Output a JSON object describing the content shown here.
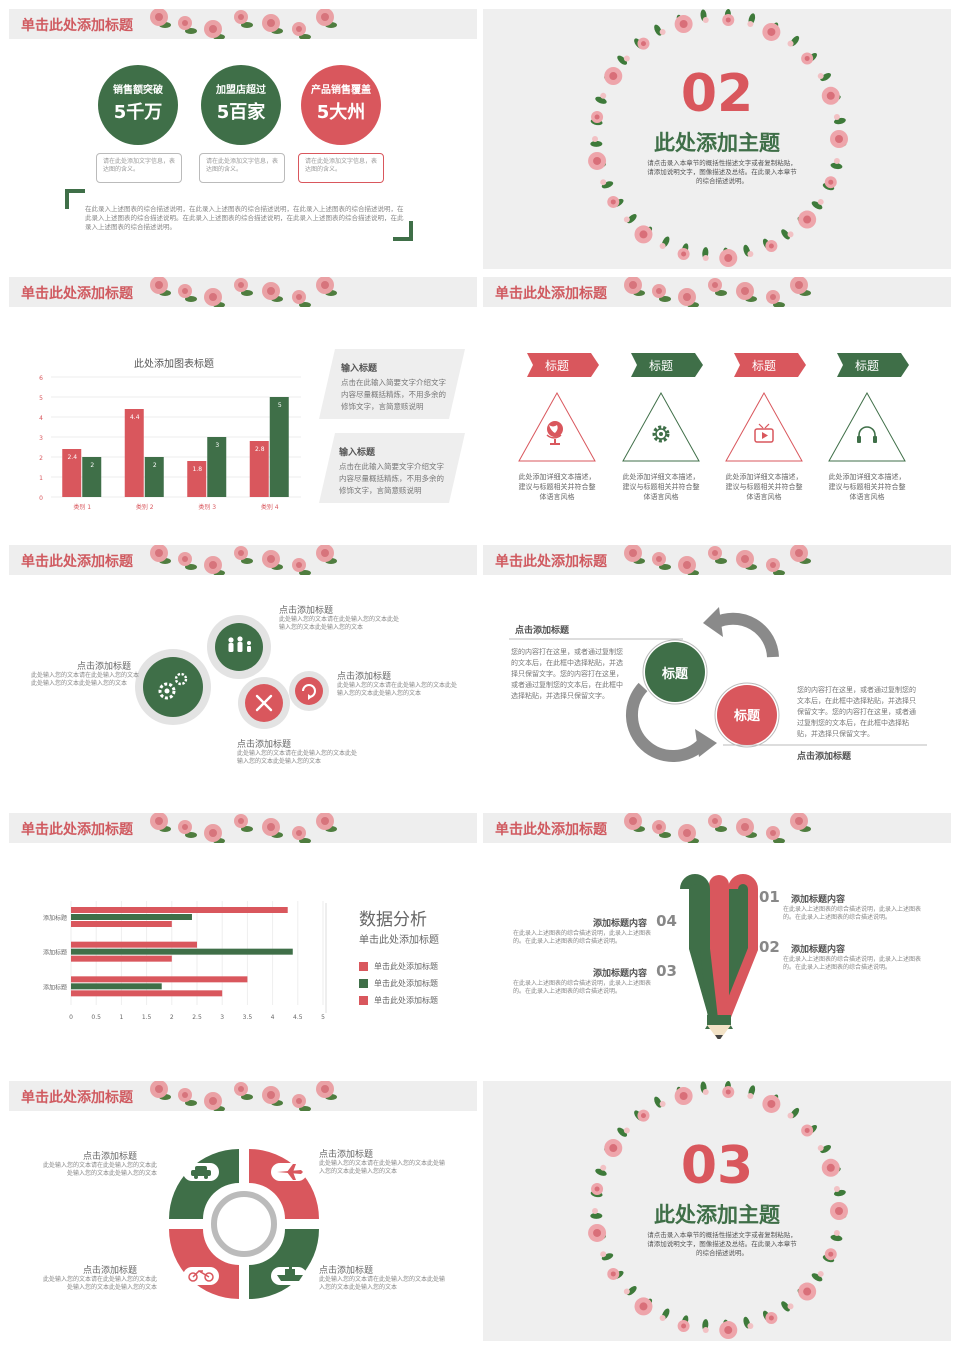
{
  "header_title": "单击此处添加标题",
  "slide1": {
    "stats": [
      {
        "label": "销售额突破",
        "value": "5千万",
        "desc": "请在此处添加文字信息，表达图的含义。"
      },
      {
        "label": "加盟店超过",
        "value": "5百家",
        "desc": "请在此处添加文字信息，表达图的含义。"
      },
      {
        "label": "产品销售覆盖",
        "value": "5大州",
        "desc": "请在此处添加文字信息，表达图的含义。"
      }
    ],
    "body": "在此录入上述图表的综合描述说明，在此录入上述图表的综合描述说明，在此录入上述图表的综合描述说明，在此录入上述图表的综合描述说明。在此录入上述图表的综合描述说明，在此录入上述图表的综合描述说明，在此录入上述图表的综合描述说明。"
  },
  "section2": {
    "number": "02",
    "title": "此处添加主题",
    "desc": "请点击录入本章节的概括性描述文字或者复制粘贴，请添加说明文字，图像描述及总结。在此录入本章节的综合描述说明。"
  },
  "slide3": {
    "chart_title": "此处添加图表标题",
    "info": [
      {
        "title": "输入标题",
        "text": "点击在此输入简要文字介绍文字内容尽量概括精炼，不用多余的修饰文字，言简意赅说明"
      },
      {
        "title": "输入标题",
        "text": "点击在此输入简要文字介绍文字内容尽量概括精炼，不用多余的修饰文字，言简意赅说明"
      }
    ]
  },
  "chart_data": [
    {
      "type": "bar",
      "title": "此处添加图表标题",
      "categories": [
        "类别 1",
        "类别 2",
        "类别 3",
        "类别 4"
      ],
      "series": [
        {
          "values": [
            2.4,
            4.4,
            1.8,
            2.8
          ],
          "color": "#d9575d"
        },
        {
          "values": [
            2,
            2,
            3,
            5
          ],
          "color": "#3f6f48"
        }
      ],
      "ylim": [
        0,
        6
      ],
      "yticks": [
        0,
        1,
        2,
        3,
        4,
        5,
        6
      ]
    },
    {
      "type": "bar",
      "orientation": "horizontal",
      "categories": [
        "添加标题",
        "添加标题",
        "添加标题"
      ],
      "series": [
        {
          "name": "单击此处添加标题",
          "values": [
            4.3,
            2.5,
            3.5
          ],
          "color": "#d9575d"
        },
        {
          "name": "单击此处添加标题",
          "values": [
            2.4,
            4.4,
            1.8
          ],
          "color": "#3f6f48"
        },
        {
          "name": "单击此处添加标题",
          "values": [
            2,
            2,
            3
          ],
          "color": "#d9575d"
        }
      ],
      "xlim": [
        0,
        5
      ],
      "xticks": [
        "0",
        "0.5",
        "1",
        "1.5",
        "2",
        "2.5",
        "3",
        "3.5",
        "4",
        "4.5",
        "5"
      ]
    }
  ],
  "slide4": {
    "items": [
      {
        "title": "标题",
        "text": "此处添加详细文本描述，建议与标题相关并符合整体语言风格",
        "icon": "globe-icon"
      },
      {
        "title": "标题",
        "text": "此处添加详细文本描述，建议与标题相关并符合整体语言风格",
        "icon": "gear-icon"
      },
      {
        "title": "标题",
        "text": "此处添加详细文本描述，建议与标题相关并符合整体语言风格",
        "icon": "tv-icon"
      },
      {
        "title": "标题",
        "text": "此处添加详细文本描述，建议与标题相关并符合整体语言风格",
        "icon": "headphones-icon"
      }
    ]
  },
  "slide5": {
    "labels": [
      {
        "title": "点击添加标题",
        "text": "此处输入您的文本请在此处输入您的文本此处输入您的文本此处输入您的文本"
      },
      {
        "title": "点击添加标题",
        "text": "此处输入您的文本请在此处输入您的文本此处输入您的文本此处输入您的文本"
      },
      {
        "title": "点击添加标题",
        "text": "此处输入您的文本请在此处输入您的文本此处输入您的文本此处输入您的文本"
      },
      {
        "title": "点击添加标题",
        "text": "此处输入您的文本请在此处输入您的文本此处输入您的文本此处输入您的文本"
      }
    ]
  },
  "slide6": {
    "top_title": "点击添加标题",
    "top_text": "您的内容打在这里，或者通过复制您的文本后，在此框中选择粘贴，并选择只保留文字。您的内容打在这里，或者通过复制您的文本后，在此框中选择粘贴，并选择只保留文字。",
    "bottom_title": "点击添加标题",
    "bottom_text": "您的内容打在这里，或者通过复制您的文本后，在此框中选择粘贴，并选择只保留文字。您的内容打在这里，或者通过复制您的文本后，在此框中选择粘贴，并选择只保留文字。",
    "circle1": "标题",
    "circle2": "标题"
  },
  "slide7": {
    "title": "数据分析",
    "subtitle": "单击此处添加标题"
  },
  "slide8": {
    "items": [
      {
        "num": "01",
        "title": "添加标题内容",
        "text": "在此录入上述图表的综合描述说明，此录入上述图表的。在此录入上述图表的综合描述说明。"
      },
      {
        "num": "02",
        "title": "添加标题内容",
        "text": "在此录入上述图表的综合描述说明，此录入上述图表的。在此录入上述图表的综合描述说明。"
      },
      {
        "num": "03",
        "title": "添加标题内容",
        "text": "在此录入上述图表的综合描述说明，此录入上述图表的。在此录入上述图表的综合描述说明。"
      },
      {
        "num": "04",
        "title": "添加标题内容",
        "text": "在此录入上述图表的综合描述说明，此录入上述图表的。在此录入上述图表的综合描述说明。"
      }
    ]
  },
  "slide9": {
    "labels": [
      {
        "title": "点击添加标题",
        "text": "此处输入您的文本请在此处输入您的文本此处输入您的文本此处输入您的文本"
      },
      {
        "title": "点击添加标题",
        "text": "此处输入您的文本请在此处输入您的文本此处输入您的文本此处输入您的文本"
      },
      {
        "title": "点击添加标题",
        "text": "此处输入您的文本请在此处输入您的文本此处输入您的文本此处输入您的文本"
      },
      {
        "title": "点击添加标题",
        "text": "此处输入您的文本请在此处输入您的文本此处输入您的文本此处输入您的文本"
      }
    ]
  },
  "section3": {
    "number": "03",
    "title": "此处添加主题",
    "desc": "请点击录入本章节的概括性描述文字或者复制粘贴，请添加说明文字，图像描述及总结。在此录入本章节的综合描述说明。"
  },
  "colors": {
    "red": "#d9575d",
    "green": "#3f6f48",
    "gray": "#efefef"
  }
}
